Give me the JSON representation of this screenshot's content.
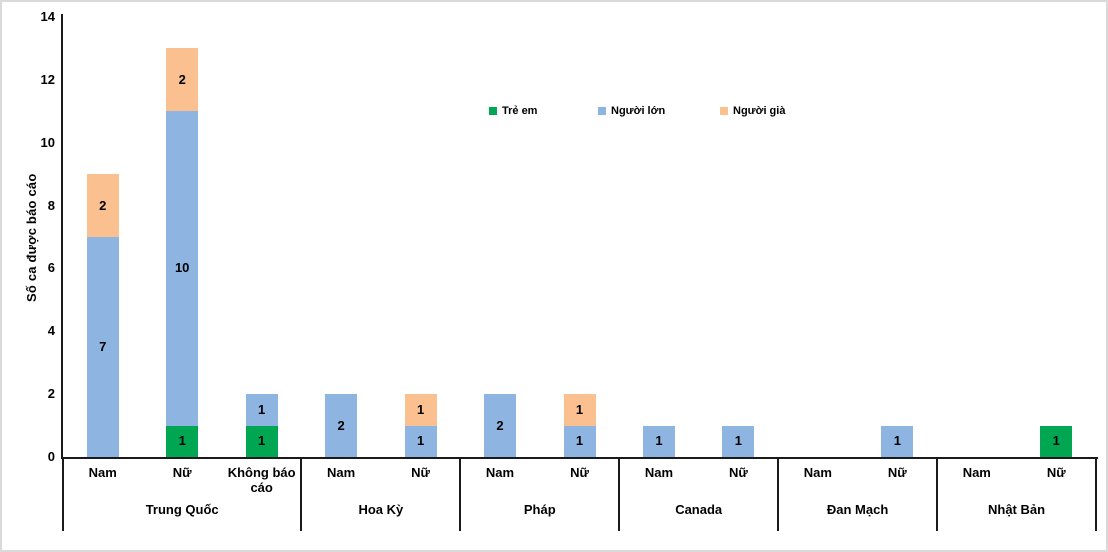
{
  "chart_data": {
    "type": "bar",
    "stacked": true,
    "title": "",
    "xlabel": "",
    "ylabel": "Số ca được báo cáo",
    "ylim": [
      0,
      14
    ],
    "yticks": [
      0,
      2,
      4,
      6,
      8,
      10,
      12,
      14
    ],
    "grid": false,
    "legend_position": "inside-top-center",
    "series": [
      {
        "name": "Trẻ em",
        "color": "#00A651"
      },
      {
        "name": "Người lớn",
        "color": "#8EB4E2"
      },
      {
        "name": "Người già",
        "color": "#FAC090"
      }
    ],
    "groups": [
      {
        "label": "Trung Quốc",
        "bars": [
          {
            "label": "Nam",
            "values": [
              0,
              7,
              2
            ]
          },
          {
            "label": "Nữ",
            "values": [
              1,
              10,
              2
            ]
          },
          {
            "label": "Không báo cáo",
            "values": [
              1,
              1,
              0
            ]
          }
        ]
      },
      {
        "label": "Hoa Kỳ",
        "bars": [
          {
            "label": "Nam",
            "values": [
              0,
              2,
              0
            ]
          },
          {
            "label": "Nữ",
            "values": [
              0,
              1,
              1
            ]
          }
        ]
      },
      {
        "label": "Pháp",
        "bars": [
          {
            "label": "Nam",
            "values": [
              0,
              2,
              0
            ]
          },
          {
            "label": "Nữ",
            "values": [
              0,
              1,
              1
            ]
          }
        ]
      },
      {
        "label": "Canada",
        "bars": [
          {
            "label": "Nam",
            "values": [
              0,
              1,
              0
            ]
          },
          {
            "label": "Nữ",
            "values": [
              0,
              1,
              0
            ]
          }
        ]
      },
      {
        "label": "Đan Mạch",
        "bars": [
          {
            "label": "Nam",
            "values": [
              0,
              0,
              0
            ]
          },
          {
            "label": "Nữ",
            "values": [
              0,
              1,
              0
            ]
          }
        ]
      },
      {
        "label": "Nhật Bản",
        "bars": [
          {
            "label": "Nam",
            "values": [
              0,
              0,
              0
            ]
          },
          {
            "label": "Nữ",
            "values": [
              1,
              0,
              0
            ]
          }
        ]
      }
    ],
    "axis_color": "#1a1a1a"
  }
}
